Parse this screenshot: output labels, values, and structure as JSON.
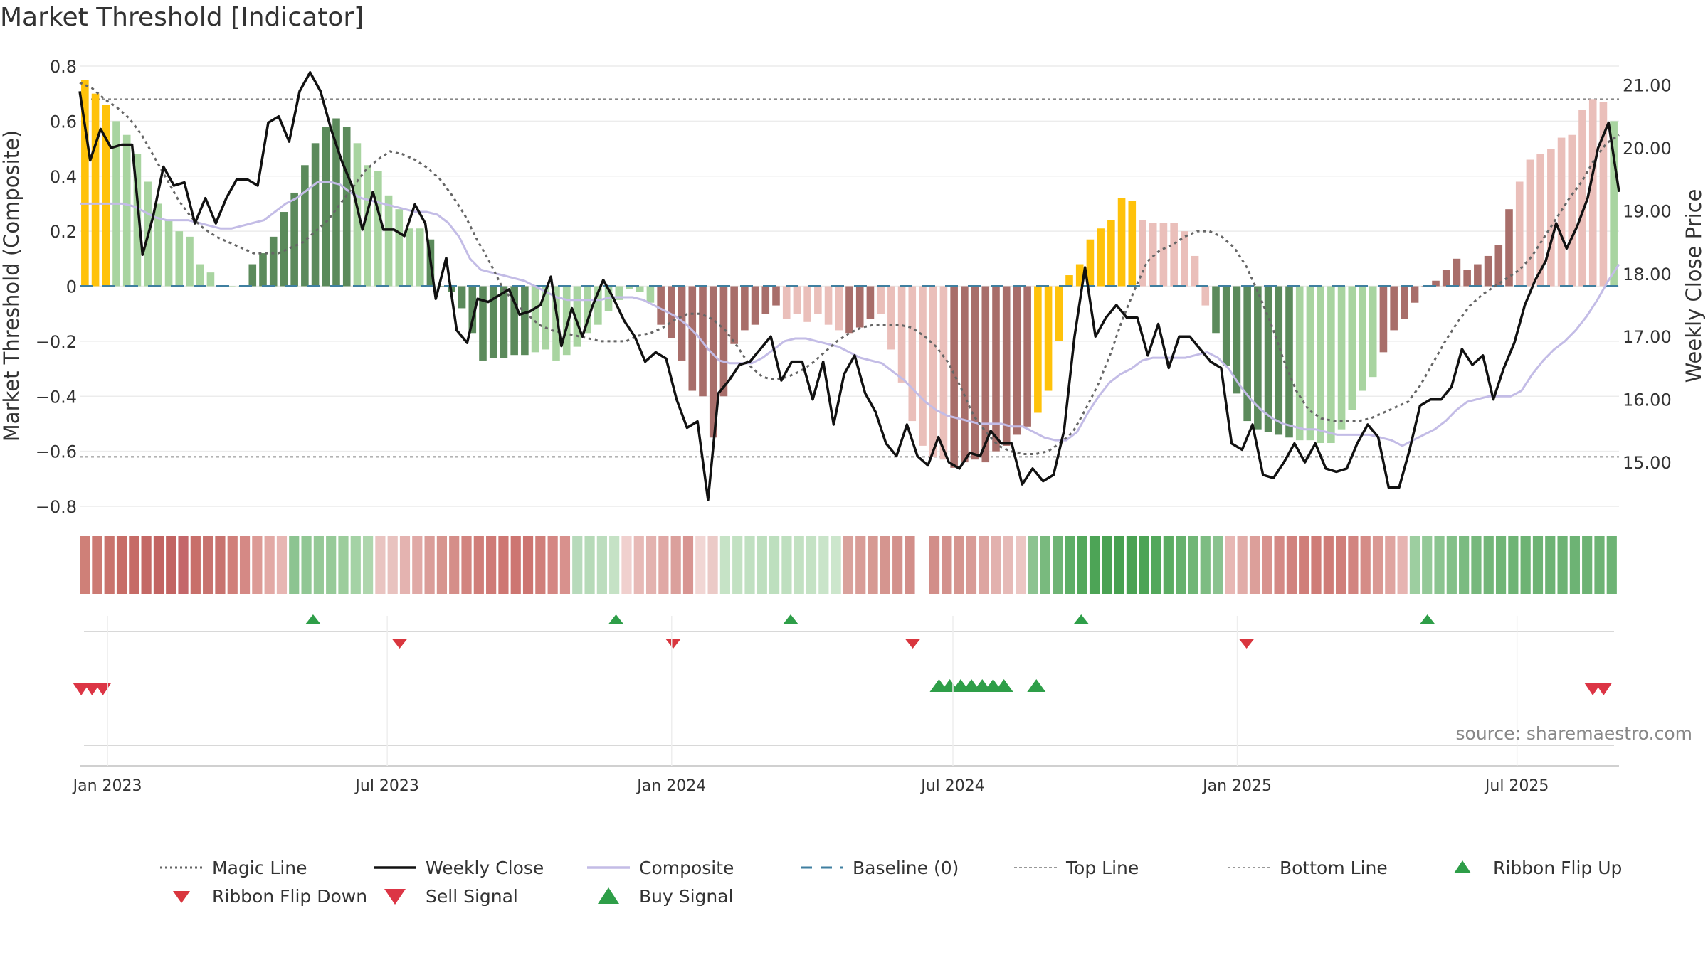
{
  "title": "Market Threshold [Indicator]",
  "source": "source: sharemaestro.com",
  "colors": {
    "gold": "#FFC20A",
    "dark_green": "#5B8A5B",
    "light_green": "#A8D4A0",
    "dark_red": "#A86E6A",
    "light_red": "#EABFBA",
    "close": "#111111",
    "composite": "#C3BCE6",
    "magic": "#666666",
    "baseline": "#3F7FA0",
    "buy": "#2E9E48",
    "sell": "#DC3545"
  },
  "chart_data": {
    "type": "bar",
    "x_axis": {
      "ticks": [
        "Jan 2023",
        "Jul 2023",
        "Jan 2024",
        "Jul 2024",
        "Jan 2025",
        "Jul 2025"
      ],
      "range": [
        "2022-12-14",
        "2025-09-05"
      ]
    },
    "y_left": {
      "label": "Market Threshold (Composite)",
      "range": [
        -0.8,
        0.8
      ],
      "ticks": [
        "0.8",
        "0.6",
        "0.4",
        "0.2",
        "0",
        "−0.2",
        "−0.4",
        "−0.6",
        "−0.8"
      ]
    },
    "y_right": {
      "label": "Weekly Close Price",
      "range": [
        14.3,
        21.3
      ],
      "ticks": [
        "21.00",
        "20.00",
        "19.00",
        "18.00",
        "17.00",
        "16.00",
        "15.00"
      ]
    },
    "top_line": 0.68,
    "bottom_line": -0.62,
    "bars": {
      "values": [
        0.75,
        0.7,
        0.66,
        0.6,
        0.55,
        0.48,
        0.38,
        0.3,
        0.24,
        0.2,
        0.18,
        0.08,
        0.05,
        0,
        0,
        0,
        0.08,
        0.12,
        0.18,
        0.27,
        0.34,
        0.44,
        0.52,
        0.58,
        0.61,
        0.58,
        0.52,
        0.44,
        0.42,
        0.33,
        0.28,
        0.21,
        0.21,
        0.17,
        0,
        -0.02,
        -0.08,
        -0.17,
        -0.27,
        -0.26,
        -0.26,
        -0.25,
        -0.25,
        -0.24,
        -0.23,
        -0.27,
        -0.25,
        -0.22,
        -0.17,
        -0.14,
        -0.09,
        -0.05,
        -0.01,
        -0.02,
        -0.06,
        -0.14,
        -0.19,
        -0.27,
        -0.38,
        -0.4,
        -0.55,
        -0.4,
        -0.21,
        -0.16,
        -0.14,
        -0.1,
        -0.07,
        -0.12,
        -0.1,
        -0.13,
        -0.1,
        -0.14,
        -0.16,
        -0.17,
        -0.15,
        -0.12,
        -0.1,
        -0.23,
        -0.35,
        -0.49,
        -0.58,
        -0.62,
        -0.63,
        -0.66,
        -0.64,
        -0.63,
        -0.64,
        -0.6,
        -0.58,
        -0.54,
        -0.51,
        -0.46,
        -0.38,
        -0.2,
        0.04,
        0.08,
        0.17,
        0.21,
        0.24,
        0.32,
        0.31,
        0.24,
        0.23,
        0.23,
        0.23,
        0.2,
        0.11,
        -0.07,
        -0.17,
        -0.29,
        -0.39,
        -0.49,
        -0.52,
        -0.53,
        -0.54,
        -0.55,
        -0.56,
        -0.56,
        -0.57,
        -0.57,
        -0.52,
        -0.45,
        -0.38,
        -0.33,
        -0.24,
        -0.16,
        -0.12,
        -0.06,
        0,
        0.02,
        0.06,
        0.1,
        0.06,
        0.08,
        0.11,
        0.15,
        0.28,
        0.38,
        0.46,
        0.48,
        0.5,
        0.54,
        0.55,
        0.64,
        0.68,
        0.67,
        0.6
      ],
      "kinds": "GGGLLLLLLLLLLLLLDDDDDDDDDDLLLLLLLDDDDDDDDDDLLLLLLLLLLLLRRRRRRRRRRRRPPPPPPRRRPPPPPPPRRRRRRRRGGGGGGGGGGPPPPPPPDDDDDDDDLLLLLLLLRRRRRRRRRRRRRPPPPPPPPPLLLDDDDDDDDDDDDDGGGL"
    },
    "weekly_close": [
      20.9,
      19.8,
      20.3,
      20.0,
      20.05,
      20.05,
      18.3,
      18.9,
      19.7,
      19.4,
      19.45,
      18.8,
      19.2,
      18.8,
      19.2,
      19.5,
      19.5,
      19.4,
      20.4,
      20.5,
      20.1,
      20.9,
      21.2,
      20.9,
      20.3,
      19.8,
      19.4,
      18.7,
      19.3,
      18.7,
      18.7,
      18.6,
      19.1,
      18.8,
      17.6,
      18.25,
      17.1,
      16.9,
      17.6,
      17.55,
      17.65,
      17.75,
      17.35,
      17.4,
      17.5,
      17.95,
      16.85,
      17.45,
      17.0,
      17.5,
      17.9,
      17.6,
      17.25,
      17.0,
      16.6,
      16.75,
      16.65,
      16.0,
      15.55,
      15.65,
      14.4,
      16.1,
      16.3,
      16.55,
      16.6,
      16.8,
      17.0,
      16.3,
      16.6,
      16.6,
      16.0,
      16.6,
      15.6,
      16.4,
      16.7,
      16.1,
      15.8,
      15.3,
      15.1,
      15.6,
      15.1,
      14.95,
      15.4,
      15.0,
      14.9,
      15.15,
      15.1,
      15.5,
      15.3,
      15.3,
      14.65,
      14.9,
      14.7,
      14.8,
      15.5,
      17.0,
      18.1,
      17.0,
      17.3,
      17.5,
      17.3,
      17.3,
      16.7,
      17.2,
      16.5,
      17.0,
      17.0,
      16.8,
      16.6,
      16.5,
      15.3,
      15.2,
      15.6,
      14.8,
      14.75,
      15.0,
      15.3,
      15.0,
      15.3,
      14.9,
      14.85,
      14.9,
      15.3,
      15.6,
      15.4,
      14.6,
      14.6,
      15.2,
      15.9,
      16.0,
      16.0,
      16.2,
      16.8,
      16.55,
      16.7,
      16.0,
      16.5,
      16.9,
      17.5,
      17.9,
      18.2,
      18.8,
      18.4,
      18.75,
      19.2,
      20.0,
      20.4,
      19.3
    ],
    "composite": [
      0.3,
      0.3,
      0.3,
      0.3,
      0.3,
      0.29,
      0.27,
      0.25,
      0.24,
      0.24,
      0.24,
      0.23,
      0.22,
      0.21,
      0.21,
      0.22,
      0.23,
      0.24,
      0.27,
      0.3,
      0.32,
      0.35,
      0.38,
      0.38,
      0.37,
      0.34,
      0.32,
      0.31,
      0.3,
      0.29,
      0.28,
      0.27,
      0.27,
      0.26,
      0.23,
      0.18,
      0.1,
      0.06,
      0.05,
      0.04,
      0.03,
      0.02,
      0,
      -0.02,
      -0.04,
      -0.05,
      -0.05,
      -0.05,
      -0.05,
      -0.04,
      -0.04,
      -0.04,
      -0.05,
      -0.07,
      -0.09,
      -0.11,
      -0.14,
      -0.18,
      -0.23,
      -0.27,
      -0.28,
      -0.28,
      -0.28,
      -0.26,
      -0.23,
      -0.2,
      -0.19,
      -0.19,
      -0.2,
      -0.21,
      -0.22,
      -0.24,
      -0.26,
      -0.27,
      -0.28,
      -0.31,
      -0.34,
      -0.38,
      -0.42,
      -0.45,
      -0.47,
      -0.48,
      -0.49,
      -0.5,
      -0.5,
      -0.5,
      -0.51,
      -0.51,
      -0.53,
      -0.55,
      -0.56,
      -0.56,
      -0.53,
      -0.46,
      -0.4,
      -0.35,
      -0.32,
      -0.3,
      -0.27,
      -0.26,
      -0.26,
      -0.26,
      -0.26,
      -0.25,
      -0.24,
      -0.26,
      -0.3,
      -0.36,
      -0.41,
      -0.45,
      -0.48,
      -0.5,
      -0.51,
      -0.52,
      -0.52,
      -0.53,
      -0.54,
      -0.54,
      -0.54,
      -0.54,
      -0.55,
      -0.56,
      -0.58,
      -0.56,
      -0.54,
      -0.52,
      -0.49,
      -0.45,
      -0.42,
      -0.41,
      -0.4,
      -0.4,
      -0.4,
      -0.38,
      -0.32,
      -0.27,
      -0.23,
      -0.2,
      -0.16,
      -0.11,
      -0.05,
      0.02,
      0.08
    ],
    "magic_line": [
      0.74,
      0.72,
      0.68,
      0.65,
      0.61,
      0.55,
      0.47,
      0.39,
      0.31,
      0.25,
      0.21,
      0.18,
      0.16,
      0.14,
      0.12,
      0.12,
      0.12,
      0.14,
      0.16,
      0.2,
      0.24,
      0.3,
      0.36,
      0.42,
      0.46,
      0.49,
      0.48,
      0.46,
      0.43,
      0.39,
      0.33,
      0.26,
      0.17,
      0.09,
      0,
      -0.06,
      -0.1,
      -0.14,
      -0.16,
      -0.17,
      -0.18,
      -0.19,
      -0.2,
      -0.2,
      -0.2,
      -0.18,
      -0.17,
      -0.15,
      -0.12,
      -0.1,
      -0.1,
      -0.12,
      -0.16,
      -0.22,
      -0.29,
      -0.33,
      -0.34,
      -0.33,
      -0.31,
      -0.28,
      -0.24,
      -0.2,
      -0.17,
      -0.15,
      -0.14,
      -0.14,
      -0.14,
      -0.15,
      -0.18,
      -0.22,
      -0.28,
      -0.37,
      -0.47,
      -0.53,
      -0.58,
      -0.6,
      -0.61,
      -0.61,
      -0.6,
      -0.57,
      -0.53,
      -0.45,
      -0.36,
      -0.25,
      -0.12,
      -0.01,
      0.09,
      0.13,
      0.15,
      0.18,
      0.2,
      0.2,
      0.18,
      0.14,
      0.07,
      -0.03,
      -0.14,
      -0.27,
      -0.38,
      -0.45,
      -0.48,
      -0.49,
      -0.49,
      -0.49,
      -0.48,
      -0.46,
      -0.44,
      -0.42,
      -0.36,
      -0.28,
      -0.2,
      -0.13,
      -0.07,
      -0.03,
      0,
      0.03,
      0.06,
      0.11,
      0.18,
      0.25,
      0.32,
      0.38,
      0.46,
      0.52,
      0.55
    ],
    "ribbon": {
      "colors": [
        "#CF8078",
        "#CC7A73",
        "#C9736D",
        "#C76D67",
        "#C66B66",
        "#C46865",
        "#C26462",
        "#C26462",
        "#C4676A",
        "#C86F6A",
        "#C8736F",
        "#C8736F",
        "#D07F7A",
        "#D58985",
        "#DC9A95",
        "#E2A9A5",
        "#E7B6B3",
        "#8CC491",
        "#91C794",
        "#95C997",
        "#96CA98",
        "#9CCD9C",
        "#A4D2A5",
        "#AED6AD",
        "#E9C4C1",
        "#E8C2BF",
        "#E4B3B0",
        "#E0A9A6",
        "#DA9D99",
        "#D7958F",
        "#D58E89",
        "#D2847F",
        "#D07E79",
        "#CF7A76",
        "#CE7773",
        "#CD7571",
        "#CD7571",
        "#D07F7A",
        "#D48783",
        "#D8918D",
        "#B7DABB",
        "#B6DAB8",
        "#BCDDBE",
        "#C5E2C5",
        "#F0D0CE",
        "#E7B9B6",
        "#E3B2AF",
        "#E0A8A5",
        "#DBA09C",
        "#D89592",
        "#F1D6D4",
        "#EBCAC7",
        "#C6E3C6",
        "#C2E1C2",
        "#C0E0C1",
        "#BEDFBF",
        "#BDDFBE",
        "#BEDFBF",
        "#C2E1C2",
        "#C4E2C4",
        "#C9E4C9",
        "#CCE6CC",
        "#D9A19C",
        "#D89C97",
        "#D69993",
        "#D5958F",
        "#D3918C",
        "#D28E89",
        "#D18C87",
        "#D28E89",
        "#D3918C",
        "#D5958F",
        "#D89B96",
        "#DDA5A1",
        "#E2B1AE",
        "#E6BAB7",
        "#EBC6C3",
        "#8CC391",
        "#79BA7E",
        "#6EB475",
        "#5EAE66",
        "#53A85B",
        "#4DA456",
        "#4AA253",
        "#47A050",
        "#4AA253",
        "#4DA456",
        "#53A85B",
        "#5BAC62",
        "#66B16D",
        "#70B676",
        "#7DBC82",
        "#8AC28F",
        "#E7B7B4",
        "#E1ACA8",
        "#DC9F9A",
        "#D8938E",
        "#D48985",
        "#D1827E",
        "#D07E79",
        "#CF7C77",
        "#CF7C77",
        "#D07F7A",
        "#D28480",
        "#D58C87",
        "#DA9893",
        "#DFA4A0",
        "#E6B4B1",
        "#9DCEA0",
        "#94C998",
        "#8BC490",
        "#83C088",
        "#7BBB81",
        "#76B87C",
        "#73B679",
        "#70B576",
        "#6EB475",
        "#6DB374",
        "#6DB374",
        "#6DB374",
        "#6DB374",
        "#6DB374",
        "#6DB374",
        "#6DB374",
        "#6DB374"
      ],
      "gap_index": 68
    },
    "ribbon_flip_up_dates": [
      "2023-05-14",
      "2023-11-26",
      "2024-03-18",
      "2024-09-22",
      "2025-05-04"
    ],
    "ribbon_flip_down_dates": [
      "2023-07-09",
      "2024-01-02",
      "2024-06-05",
      "2025-01-07"
    ],
    "sell_signal_dates": [
      "2022-12-15",
      "2022-12-22",
      "2022-12-29",
      "2025-08-19",
      "2025-08-26"
    ],
    "buy_signal_dates": [
      "2024-06-22",
      "2024-06-29",
      "2024-07-06",
      "2024-07-13",
      "2024-07-20",
      "2024-07-27",
      "2024-08-03",
      "2024-08-24"
    ]
  },
  "legend": [
    {
      "label": "Magic Line",
      "symbol": "dotted-grey-line"
    },
    {
      "label": "Weekly Close",
      "symbol": "solid-black-line"
    },
    {
      "label": "Composite",
      "symbol": "solid-lavender-line"
    },
    {
      "label": "Baseline (0)",
      "symbol": "dashed-blue-line"
    },
    {
      "label": "Top Line",
      "symbol": "dotted-grey-line"
    },
    {
      "label": "Bottom Line",
      "symbol": "dotted-grey-line"
    },
    {
      "label": "Ribbon Flip Up",
      "symbol": "green-triangle-up"
    },
    {
      "label": "Ribbon Flip Down",
      "symbol": "red-triangle-down"
    },
    {
      "label": "Sell Signal",
      "symbol": "red-triangle-down-large"
    },
    {
      "label": "Buy Signal",
      "symbol": "green-triangle-up-large"
    }
  ]
}
